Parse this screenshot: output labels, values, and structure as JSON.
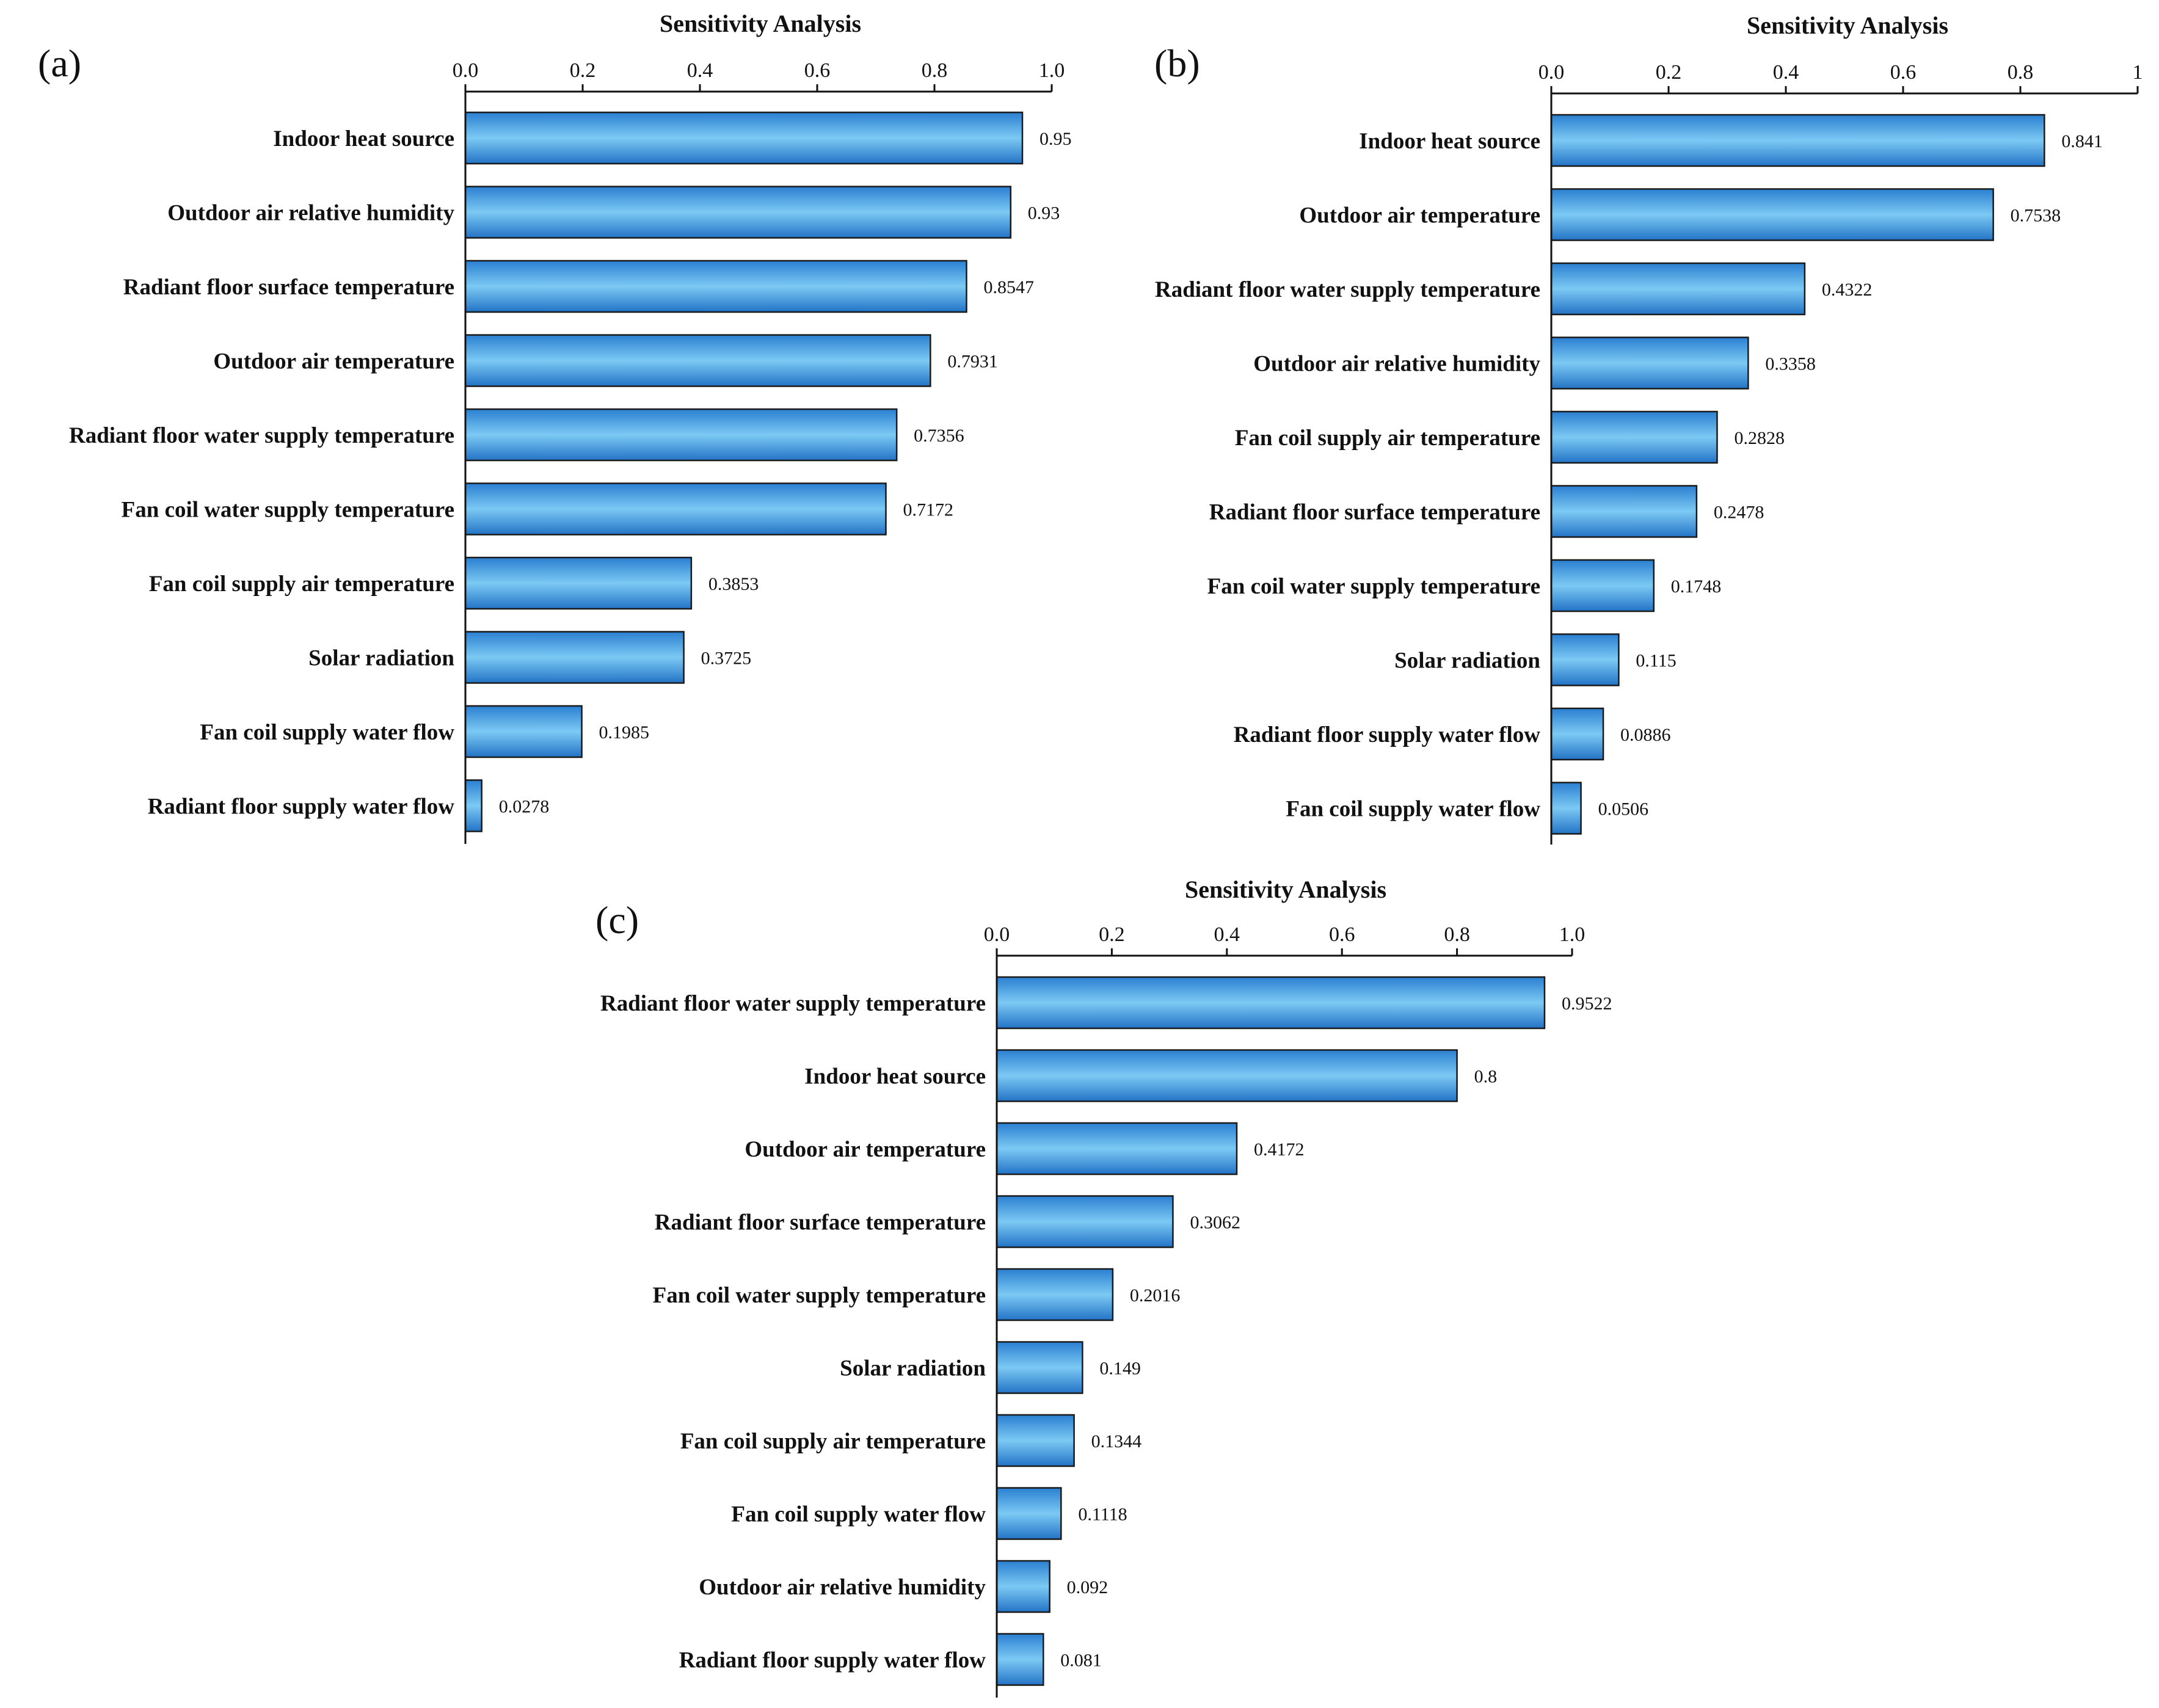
{
  "chart_data": [
    {
      "type": "bar",
      "orientation": "horizontal",
      "panel": "(a)",
      "title": "Sensitivity Analysis",
      "xlim": [
        0,
        1.0
      ],
      "xticks": [
        "0.0",
        "0.2",
        "0.4",
        "0.6",
        "0.8",
        "1.0"
      ],
      "xtick_values": [
        0,
        0.2,
        0.4,
        0.6,
        0.8,
        1.0
      ],
      "categories": [
        "Indoor heat source",
        "Outdoor air relative humidity",
        "Radiant floor surface temperature",
        "Outdoor air temperature",
        "Radiant floor water supply temperature",
        "Fan coil water supply temperature",
        "Fan coil supply air temperature",
        "Solar radiation",
        "Fan coil supply water flow",
        "Radiant floor supply water flow"
      ],
      "values": [
        0.95,
        0.93,
        0.8547,
        0.7931,
        0.7356,
        0.7172,
        0.3853,
        0.3725,
        0.1985,
        0.0278
      ],
      "value_labels": [
        "0.95",
        "0.93",
        "0.8547",
        "0.7931",
        "0.7356",
        "0.7172",
        "0.3853",
        "0.3725",
        "0.1985",
        "0.0278"
      ],
      "axis_position": "top"
    },
    {
      "type": "bar",
      "orientation": "horizontal",
      "panel": "(b)",
      "title": "Sensitivity Analysis",
      "xlim": [
        0,
        1.0
      ],
      "xticks": [
        "0.0",
        "0.2",
        "0.4",
        "0.6",
        "0.8",
        "1"
      ],
      "xtick_values": [
        0,
        0.2,
        0.4,
        0.6,
        0.8,
        1.0
      ],
      "categories": [
        "Indoor heat source",
        "Outdoor air temperature",
        "Radiant floor water supply temperature",
        "Outdoor air relative humidity",
        "Fan coil supply air temperature",
        "Radiant floor surface temperature",
        "Fan coil water supply temperature",
        "Solar radiation",
        "Radiant floor supply water flow",
        "Fan coil supply water flow"
      ],
      "values": [
        0.841,
        0.7538,
        0.4322,
        0.3358,
        0.2828,
        0.2478,
        0.1748,
        0.115,
        0.0886,
        0.0506
      ],
      "value_labels": [
        "0.841",
        "0.7538",
        "0.4322",
        "0.3358",
        "0.2828",
        "0.2478",
        "0.1748",
        "0.115",
        "0.0886",
        "0.0506"
      ],
      "axis_position": "top"
    },
    {
      "type": "bar",
      "orientation": "horizontal",
      "panel": "(c)",
      "title": "Sensitivity Analysis",
      "xlim": [
        0,
        1.0
      ],
      "xticks": [
        "0.0",
        "0.2",
        "0.4",
        "0.6",
        "0.8",
        "1.0"
      ],
      "xtick_values": [
        0,
        0.2,
        0.4,
        0.6,
        0.8,
        1.0
      ],
      "categories": [
        "Radiant floor water supply temperature",
        "Indoor heat source",
        "Outdoor air temperature",
        "Radiant floor surface temperature",
        "Fan coil water supply temperature",
        "Solar radiation",
        "Fan coil supply air temperature",
        "Fan coil supply water flow",
        "Outdoor air relative humidity",
        "Radiant floor supply water flow"
      ],
      "values": [
        0.9522,
        0.8,
        0.4172,
        0.3062,
        0.2016,
        0.149,
        0.1344,
        0.1118,
        0.092,
        0.081
      ],
      "value_labels": [
        "0.9522",
        "0.8",
        "0.4172",
        "0.3062",
        "0.2016",
        "0.149",
        "0.1344",
        "0.1118",
        "0.092",
        "0.081"
      ],
      "axis_position": "top"
    }
  ],
  "colors": {
    "bar_edge": "#1e6fc2",
    "bar_center": "#74c4f2",
    "outline": "#1a1a1a"
  }
}
